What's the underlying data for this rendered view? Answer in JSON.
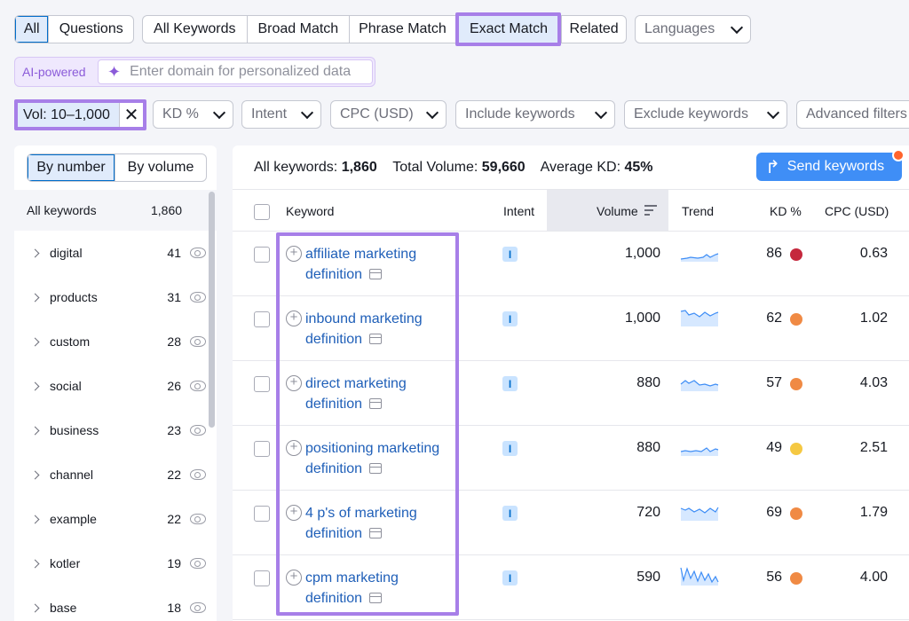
{
  "tabs_group1": [
    "All",
    "Questions"
  ],
  "tabs_group2": [
    "All Keywords",
    "Broad Match",
    "Phrase Match",
    "Exact Match",
    "Related"
  ],
  "languages": "Languages",
  "ai": {
    "label": "AI-powered",
    "placeholder": "Enter domain for personalized data"
  },
  "filters": {
    "vol": "Vol: 10–1,000",
    "kd": "KD %",
    "intent": "Intent",
    "cpc": "CPC (USD)",
    "include": "Include keywords",
    "exclude": "Exclude keywords",
    "advanced": "Advanced filters"
  },
  "sidebar": {
    "tabs": [
      "By number",
      "By volume"
    ],
    "all_label": "All keywords",
    "all_count": "1,860",
    "items": [
      {
        "label": "digital",
        "count": "41"
      },
      {
        "label": "products",
        "count": "31"
      },
      {
        "label": "custom",
        "count": "28"
      },
      {
        "label": "social",
        "count": "26"
      },
      {
        "label": "business",
        "count": "23"
      },
      {
        "label": "channel",
        "count": "22"
      },
      {
        "label": "example",
        "count": "22"
      },
      {
        "label": "kotler",
        "count": "19"
      },
      {
        "label": "base",
        "count": "18"
      }
    ]
  },
  "summary": {
    "all_label": "All keywords:",
    "all_value": "1,860",
    "vol_label": "Total Volume:",
    "vol_value": "59,660",
    "kd_label": "Average KD:",
    "kd_value": "45%"
  },
  "send_label": "Send keywords",
  "headers": {
    "keyword": "Keyword",
    "intent": "Intent",
    "volume": "Volume",
    "trend": "Trend",
    "kd": "KD %",
    "cpc": "CPC (USD)"
  },
  "rows": [
    {
      "kw1": "affiliate marketing",
      "kw2": "definition",
      "intent": "I",
      "volume": "1,000",
      "kd": "86",
      "kd_color": "#c5283d",
      "cpc": "0.63"
    },
    {
      "kw1": "inbound marketing",
      "kw2": "definition",
      "intent": "I",
      "volume": "1,000",
      "kd": "62",
      "kd_color": "#f08a44",
      "cpc": "1.02"
    },
    {
      "kw1": "direct marketing",
      "kw2": "definition",
      "intent": "I",
      "volume": "880",
      "kd": "57",
      "kd_color": "#f08a44",
      "cpc": "4.03"
    },
    {
      "kw1": "positioning marketing",
      "kw2": "definition",
      "intent": "I",
      "volume": "880",
      "kd": "49",
      "kd_color": "#f5c842",
      "cpc": "2.51"
    },
    {
      "kw1": "4 p's of marketing",
      "kw2": "definition",
      "intent": "I",
      "volume": "720",
      "kd": "69",
      "kd_color": "#f08a44",
      "cpc": "1.79"
    },
    {
      "kw1": "cpm marketing",
      "kw2": "definition",
      "intent": "I",
      "volume": "590",
      "kd": "56",
      "kd_color": "#f08a44",
      "cpc": "4.00"
    }
  ]
}
